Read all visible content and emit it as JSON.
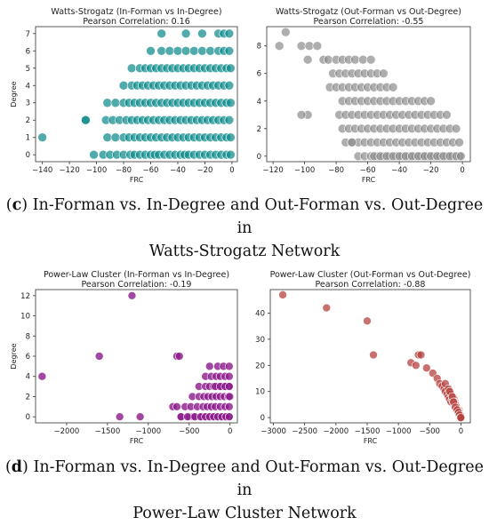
{
  "captions": {
    "c": {
      "letter": "c",
      "text_line1": " In-Forman vs. In-Degree and Out-Forman vs. Out-Degree in",
      "text_line2": "Watts-Strogatz Network"
    },
    "d": {
      "letter": "d",
      "text_line1": " In-Forman vs. In-Degree and Out-Forman vs. Out-Degree in",
      "text_line2": "Power-Law Cluster Network"
    }
  },
  "chart_data": [
    {
      "type": "scatter",
      "title": "Watts-Strogatz (In-Forman vs In-Degree)",
      "subtitle": "Pearson Correlation: 0.16",
      "xlabel": "FRC",
      "ylabel": "Degree",
      "xlim": [
        -145,
        4
      ],
      "ylim": [
        -0.4,
        7.4
      ],
      "xticks": [
        -140,
        -120,
        -100,
        -80,
        -60,
        -40,
        -20,
        0
      ],
      "yticks": [
        0,
        1,
        2,
        3,
        4,
        5,
        6,
        7
      ],
      "color": "#0e8a8a",
      "grid": false,
      "points_x": [
        -140,
        -102,
        -95,
        -90,
        -85,
        -80,
        -75,
        -72,
        -68,
        -64,
        -60,
        -57,
        -54,
        -50,
        -46,
        -42,
        -38,
        -35,
        -32,
        -28,
        -24,
        -20,
        -16,
        -12,
        -8,
        -4,
        -1,
        -108,
        -92,
        -86,
        -80,
        -76,
        -72,
        -68,
        -64,
        -60,
        -56,
        -52,
        -48,
        -44,
        -40,
        -36,
        -32,
        -28,
        -24,
        -20,
        -16,
        -12,
        -8,
        -4,
        -1,
        -108,
        -93,
        -88,
        -83,
        -78,
        -74,
        -70,
        -66,
        -62,
        -58,
        -54,
        -50,
        -46,
        -42,
        -38,
        -34,
        -30,
        -26,
        -22,
        -18,
        -14,
        -10,
        -6,
        -2,
        -92,
        -86,
        -80,
        -76,
        -72,
        -68,
        -64,
        -60,
        -56,
        -52,
        -48,
        -44,
        -40,
        -36,
        -32,
        -28,
        -24,
        -20,
        -16,
        -12,
        -8,
        -4,
        -1,
        -80,
        -74,
        -70,
        -66,
        -62,
        -58,
        -54,
        -50,
        -46,
        -42,
        -38,
        -34,
        -30,
        -26,
        -22,
        -18,
        -14,
        -10,
        -6,
        -2,
        -74,
        -68,
        -64,
        -60,
        -56,
        -52,
        -48,
        -44,
        -40,
        -36,
        -32,
        -28,
        -24,
        -20,
        -16,
        -12,
        -8,
        -4,
        -1,
        -60,
        -52,
        -46,
        -40,
        -34,
        -28,
        -22,
        -16,
        -10,
        -6,
        -2,
        -52,
        -34,
        -22,
        -10,
        -6,
        -2
      ],
      "points_y": [
        1,
        0,
        0,
        0,
        0,
        0,
        0,
        0,
        0,
        0,
        0,
        0,
        0,
        0,
        0,
        0,
        0,
        0,
        0,
        0,
        0,
        0,
        0,
        0,
        0,
        0,
        0,
        2,
        1,
        1,
        1,
        1,
        1,
        1,
        1,
        1,
        1,
        1,
        1,
        1,
        1,
        1,
        1,
        1,
        1,
        1,
        1,
        1,
        1,
        1,
        1,
        2,
        2,
        2,
        2,
        2,
        2,
        2,
        2,
        2,
        2,
        2,
        2,
        2,
        2,
        2,
        2,
        2,
        2,
        2,
        2,
        2,
        2,
        2,
        2,
        3,
        3,
        3,
        3,
        3,
        3,
        3,
        3,
        3,
        3,
        3,
        3,
        3,
        3,
        3,
        3,
        3,
        3,
        3,
        3,
        3,
        3,
        3,
        4,
        4,
        4,
        4,
        4,
        4,
        4,
        4,
        4,
        4,
        4,
        4,
        4,
        4,
        4,
        4,
        4,
        4,
        4,
        4,
        5,
        5,
        5,
        5,
        5,
        5,
        5,
        5,
        5,
        5,
        5,
        5,
        5,
        5,
        5,
        5,
        5,
        5,
        5,
        6,
        6,
        6,
        6,
        6,
        6,
        6,
        6,
        6,
        6,
        6,
        7,
        7,
        7,
        7,
        7,
        7
      ]
    },
    {
      "type": "scatter",
      "title": "Watts-Strogatz (Out-Forman vs Out-Degree)",
      "subtitle": "Pearson Correlation: -0.55",
      "xlabel": "FRC",
      "ylabel": "",
      "xlim": [
        -124,
        5
      ],
      "ylim": [
        -0.4,
        9.4
      ],
      "xticks": [
        -120,
        -100,
        -80,
        -60,
        -40,
        -20,
        0
      ],
      "yticks": [
        0,
        2,
        4,
        6,
        8
      ],
      "color": "#8c8c8c",
      "grid": false,
      "points_x": [
        -112,
        -116,
        -102,
        -97,
        -92,
        -98,
        -88,
        -85,
        -80,
        -76,
        -72,
        -68,
        -63,
        -58,
        -82,
        -78,
        -74,
        -70,
        -66,
        -62,
        -58,
        -54,
        -50,
        -84,
        -80,
        -76,
        -72,
        -68,
        -64,
        -60,
        -56,
        -52,
        -48,
        -44,
        -76,
        -72,
        -68,
        -64,
        -60,
        -56,
        -52,
        -48,
        -44,
        -40,
        -36,
        -32,
        -28,
        -24,
        -20,
        -78,
        -74,
        -70,
        -66,
        -62,
        -58,
        -54,
        -50,
        -46,
        -42,
        -38,
        -34,
        -30,
        -26,
        -22,
        -18,
        -14,
        -10,
        -98,
        -76,
        -72,
        -68,
        -64,
        -60,
        -56,
        -52,
        -48,
        -44,
        -40,
        -36,
        -32,
        -28,
        -24,
        -20,
        -16,
        -12,
        -8,
        -4,
        -102,
        -74,
        -70,
        -66,
        -62,
        -58,
        -54,
        -50,
        -46,
        -42,
        -38,
        -34,
        -30,
        -26,
        -22,
        -18,
        -14,
        -10,
        -6,
        -2,
        -70,
        -66,
        -62,
        -58,
        -54,
        -50,
        -46,
        -42,
        -38,
        -34,
        -30,
        -26,
        -22,
        -18,
        -14,
        -10,
        -6,
        -2,
        -56,
        -52,
        -48,
        -44,
        -40,
        -36,
        -32,
        -28,
        -24,
        -20,
        -16,
        -12,
        -8,
        -4,
        -1
      ],
      "points_y": [
        9,
        8,
        8,
        8,
        8,
        7,
        7,
        7,
        7,
        7,
        7,
        7,
        7,
        7,
        6,
        6,
        6,
        6,
        6,
        6,
        6,
        6,
        6,
        5,
        5,
        5,
        5,
        5,
        5,
        5,
        5,
        5,
        5,
        5,
        4,
        4,
        4,
        4,
        4,
        4,
        4,
        4,
        4,
        4,
        4,
        4,
        4,
        4,
        4,
        3,
        3,
        3,
        3,
        3,
        3,
        3,
        3,
        3,
        3,
        3,
        3,
        3,
        3,
        3,
        3,
        3,
        3,
        3,
        2,
        2,
        2,
        2,
        2,
        2,
        2,
        2,
        2,
        2,
        2,
        2,
        2,
        2,
        2,
        2,
        2,
        2,
        2,
        3,
        1,
        1,
        1,
        1,
        1,
        1,
        1,
        1,
        1,
        1,
        1,
        1,
        1,
        1,
        1,
        1,
        1,
        1,
        1,
        1,
        0,
        0,
        0,
        0,
        0,
        0,
        0,
        0,
        0,
        0,
        0,
        0,
        0,
        0,
        0,
        0,
        0,
        0,
        0,
        0,
        0,
        0,
        0,
        0,
        0,
        0,
        0,
        0,
        0,
        0,
        0,
        0,
        0,
        0
      ]
    },
    {
      "type": "scatter",
      "title": "Power-Law Cluster (In-Forman vs In-Degree)",
      "subtitle": "Pearson Correlation: -0.19",
      "xlabel": "FRC",
      "ylabel": "Degree",
      "xlim": [
        -2380,
        90
      ],
      "ylim": [
        -0.6,
        12.6
      ],
      "xticks": [
        -2000,
        -1500,
        -1000,
        -500,
        0
      ],
      "yticks": [
        0,
        2,
        4,
        6,
        8,
        10,
        12
      ],
      "color": "#8b1a8b",
      "grid": false,
      "points_x": [
        -2300,
        -1600,
        -1200,
        -1350,
        -1100,
        -650,
        -620,
        -700,
        -600,
        -500,
        -450,
        -350,
        -300,
        -250,
        -200,
        -150,
        -100,
        -50,
        -10,
        -650,
        -550,
        -480,
        -400,
        -330,
        -280,
        -230,
        -180,
        -120,
        -60,
        -10,
        -600,
        -520,
        -430,
        -360,
        -300,
        -250,
        -200,
        -150,
        -100,
        -50,
        -10,
        -460,
        -380,
        -320,
        -270,
        -220,
        -170,
        -120,
        -70,
        -20,
        -5,
        -380,
        -300,
        -250,
        -200,
        -150,
        -100,
        -50,
        -10,
        -300,
        -230,
        -170,
        -120,
        -60,
        -10,
        -250,
        -150,
        -80,
        -10,
        -180,
        -120,
        -60,
        -10
      ],
      "points_y": [
        4,
        6,
        12,
        0,
        0,
        6,
        6,
        1,
        0,
        0,
        0,
        0,
        0,
        0,
        0,
        0,
        0,
        0,
        0,
        1,
        1,
        1,
        1,
        1,
        1,
        1,
        1,
        1,
        1,
        1,
        0,
        0,
        0,
        0,
        0,
        0,
        0,
        0,
        0,
        0,
        0,
        2,
        2,
        2,
        2,
        2,
        2,
        2,
        2,
        2,
        2,
        3,
        3,
        3,
        3,
        3,
        3,
        3,
        3,
        4,
        4,
        4,
        4,
        4,
        4,
        5,
        5,
        5,
        5,
        3,
        3,
        3,
        3
      ]
    },
    {
      "type": "scatter",
      "title": "Power-Law Cluster (Out-Forman vs Out-Degree)",
      "subtitle": "Pearson Correlation: -0.88",
      "xlabel": "FRC",
      "ylabel": "",
      "xlim": [
        -3050,
        150
      ],
      "ylim": [
        -2,
        49
      ],
      "xticks": [
        -3000,
        -2500,
        -2000,
        -1500,
        -1000,
        -500,
        0
      ],
      "yticks": [
        0,
        10,
        20,
        30,
        40
      ],
      "color": "#b5413f",
      "grid": false,
      "points_x": [
        -2850,
        -2150,
        -1500,
        -1400,
        -800,
        -720,
        -680,
        -640,
        -550,
        -450,
        -380,
        -340,
        -300,
        -270,
        -250,
        -220,
        -200,
        -180,
        -160,
        -140,
        -120,
        -100,
        -90,
        -80,
        -70,
        -60,
        -50,
        -40,
        -30,
        -20,
        -10,
        -5,
        -250,
        -200,
        -160,
        -130,
        -110,
        -95,
        -80,
        -65,
        -55,
        -45,
        -35,
        -25,
        -15,
        -8,
        -3,
        -180,
        -140,
        -110,
        -90,
        -70,
        -50,
        -35,
        -20,
        -10,
        -4,
        -120,
        -90,
        -60,
        -40,
        -25,
        -12,
        -5,
        -2
      ],
      "points_y": [
        47,
        42,
        37,
        24,
        21,
        20,
        24,
        24,
        19,
        17,
        15,
        13,
        12,
        11,
        10,
        9,
        8,
        7,
        6,
        7,
        6,
        5,
        4,
        5,
        3,
        4,
        3,
        2,
        3,
        2,
        1,
        1,
        13,
        11,
        9,
        8,
        7,
        6,
        5,
        4,
        3,
        2,
        2,
        1,
        1,
        0,
        0,
        10,
        8,
        6,
        5,
        4,
        3,
        2,
        1,
        1,
        0,
        6,
        4,
        3,
        2,
        1,
        0,
        0,
        0
      ]
    }
  ]
}
